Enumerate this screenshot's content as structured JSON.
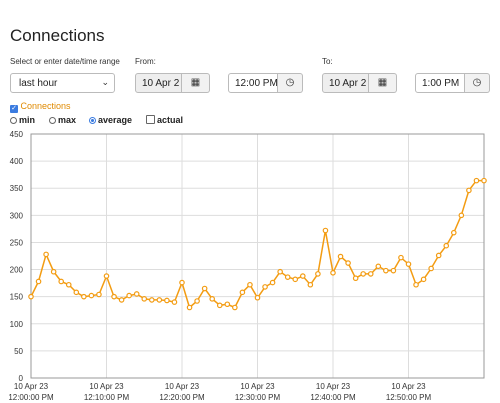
{
  "page": {
    "title": "Connections"
  },
  "range": {
    "label": "Select or enter date/time range",
    "value": "last hour"
  },
  "from": {
    "label": "From:",
    "date": "10 Apr 2",
    "time": "12:00 PM"
  },
  "to": {
    "label": "To:",
    "date": "10 Apr 2",
    "time": "1:00 PM"
  },
  "series_toggle": {
    "label": "Connections",
    "checked": true
  },
  "modes": [
    {
      "label": "min",
      "selected": false,
      "kind": "radio"
    },
    {
      "label": "max",
      "selected": false,
      "kind": "radio"
    },
    {
      "label": "average",
      "selected": true,
      "kind": "radio"
    },
    {
      "label": "actual",
      "selected": false,
      "kind": "checkbox"
    }
  ],
  "icons": {
    "calendar": "calendar-icon",
    "clock": "clock-icon",
    "dropdown": "chevron-down-icon"
  },
  "colors": {
    "series": "#f39c12",
    "check": "#3a7be0"
  },
  "chart_data": {
    "type": "line",
    "title": "",
    "ylim": [
      0,
      450
    ],
    "yticks": [
      0,
      50,
      100,
      150,
      200,
      250,
      300,
      350,
      400,
      450
    ],
    "grid": true,
    "x_ticks": [
      {
        "line1": "10 Apr 23",
        "line2": "12:00:00 PM",
        "minute": 0
      },
      {
        "line1": "10 Apr 23",
        "line2": "12:10:00 PM",
        "minute": 10
      },
      {
        "line1": "10 Apr 23",
        "line2": "12:20:00 PM",
        "minute": 20
      },
      {
        "line1": "10 Apr 23",
        "line2": "12:30:00 PM",
        "minute": 30
      },
      {
        "line1": "10 Apr 23",
        "line2": "12:40:00 PM",
        "minute": 40
      },
      {
        "line1": "10 Apr 23",
        "line2": "12:50:00 PM",
        "minute": 50
      }
    ],
    "xlim_minutes": [
      0,
      60
    ],
    "series": [
      {
        "name": "Connections",
        "x_minutes": [
          0,
          1,
          2,
          3,
          4,
          5,
          6,
          7,
          8,
          9,
          10,
          11,
          12,
          13,
          14,
          15,
          16,
          17,
          18,
          19,
          20,
          21,
          22,
          23,
          24,
          25,
          26,
          27,
          28,
          29,
          30,
          31,
          32,
          33,
          34,
          35,
          36,
          37,
          38,
          39,
          40,
          41,
          42,
          43,
          44,
          45,
          46,
          47,
          48,
          49,
          50,
          51,
          52,
          53,
          54,
          55,
          56,
          57,
          58,
          59,
          60
        ],
        "values": [
          150,
          178,
          228,
          196,
          178,
          172,
          158,
          150,
          152,
          154,
          188,
          150,
          144,
          152,
          155,
          146,
          144,
          144,
          143,
          140,
          176,
          130,
          142,
          165,
          146,
          134,
          136,
          130,
          158,
          172,
          148,
          168,
          176,
          196,
          186,
          182,
          188,
          172,
          192,
          272,
          194,
          224,
          212,
          184,
          192,
          192,
          206,
          198,
          198,
          222,
          210,
          172,
          182,
          202,
          226,
          244,
          268,
          300,
          346,
          364,
          364
        ]
      }
    ]
  }
}
